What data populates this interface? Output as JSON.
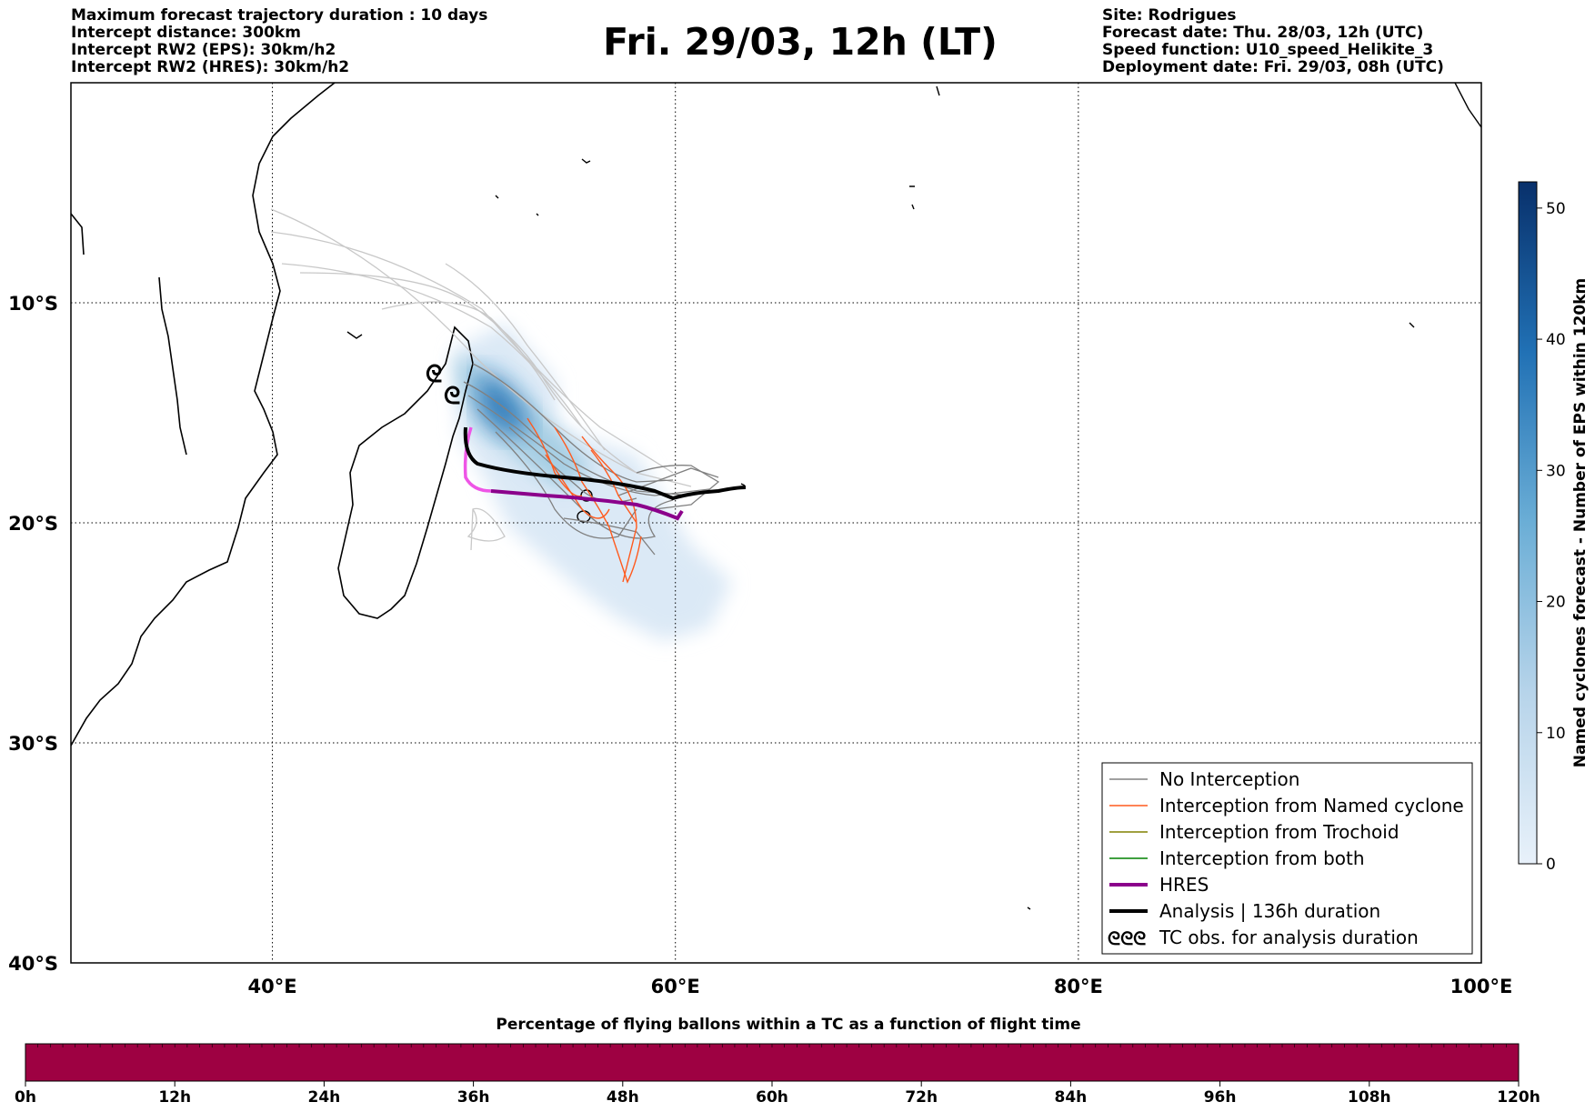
{
  "header": {
    "left": [
      "Maximum forecast trajectory duration : 10 days",
      "Intercept distance: 300km",
      "Intercept RW2 (EPS):  30km/h2",
      "Intercept RW2 (HRES): 30km/h2"
    ],
    "title": "Fri. 29/03, 12h (LT)",
    "right": [
      "Site: Rodrigues",
      "Forecast date: Thu. 28/03, 12h (UTC)",
      "Speed function: U10_speed_Helikite_3",
      "Deployment date: Fri. 29/03, 08h (UTC)"
    ]
  },
  "map": {
    "lon_range": [
      30,
      100
    ],
    "lat_range": [
      -40,
      0
    ],
    "lon_ticks": [
      {
        "value": 40,
        "label": "40°E"
      },
      {
        "value": 60,
        "label": "60°E"
      },
      {
        "value": 80,
        "label": "80°E"
      },
      {
        "value": 100,
        "label": "100°E"
      }
    ],
    "lat_ticks": [
      {
        "value": -10,
        "label": "10°S"
      },
      {
        "value": -20,
        "label": "20°S"
      },
      {
        "value": -30,
        "label": "30°S"
      },
      {
        "value": -40,
        "label": "40°S"
      }
    ],
    "colors": {
      "no_interception": "#808080",
      "named_cyclone": "#ff5a1e",
      "trochoid": "#808000",
      "both": "#008000",
      "hres": "#8b008b",
      "analysis": "#000000",
      "density_light": "#dbe9f6",
      "density_dark": "#08306b"
    }
  },
  "colorbar": {
    "label": "Named cyclones forecast - Number of EPS within 120km",
    "range": [
      0,
      52
    ],
    "ticks": [
      0,
      10,
      20,
      30,
      40,
      50
    ]
  },
  "legend": {
    "items": [
      {
        "label": "No Interception",
        "style": "thin",
        "color": "#808080"
      },
      {
        "label": "Interception from Named cyclone",
        "style": "thin",
        "color": "#ff5a1e"
      },
      {
        "label": "Interception from Trochoid",
        "style": "thin",
        "color": "#808000"
      },
      {
        "label": "Interception from both",
        "style": "thin",
        "color": "#008000"
      },
      {
        "label": "HRES",
        "style": "thick",
        "color": "#8b008b"
      },
      {
        "label": "Analysis | 136h duration",
        "style": "thick",
        "color": "#000000"
      },
      {
        "label": "TC obs. for analysis duration",
        "style": "symbol",
        "color": "#000000",
        "symbol": "ᘓᘓᘓ"
      }
    ]
  },
  "bottom_bar": {
    "title": "Percentage of flying ballons within a TC as a function of flight time",
    "color": "#9e0142",
    "ticks": [
      "0h",
      "12h",
      "24h",
      "36h",
      "48h",
      "60h",
      "72h",
      "84h",
      "96h",
      "108h",
      "120h"
    ]
  }
}
